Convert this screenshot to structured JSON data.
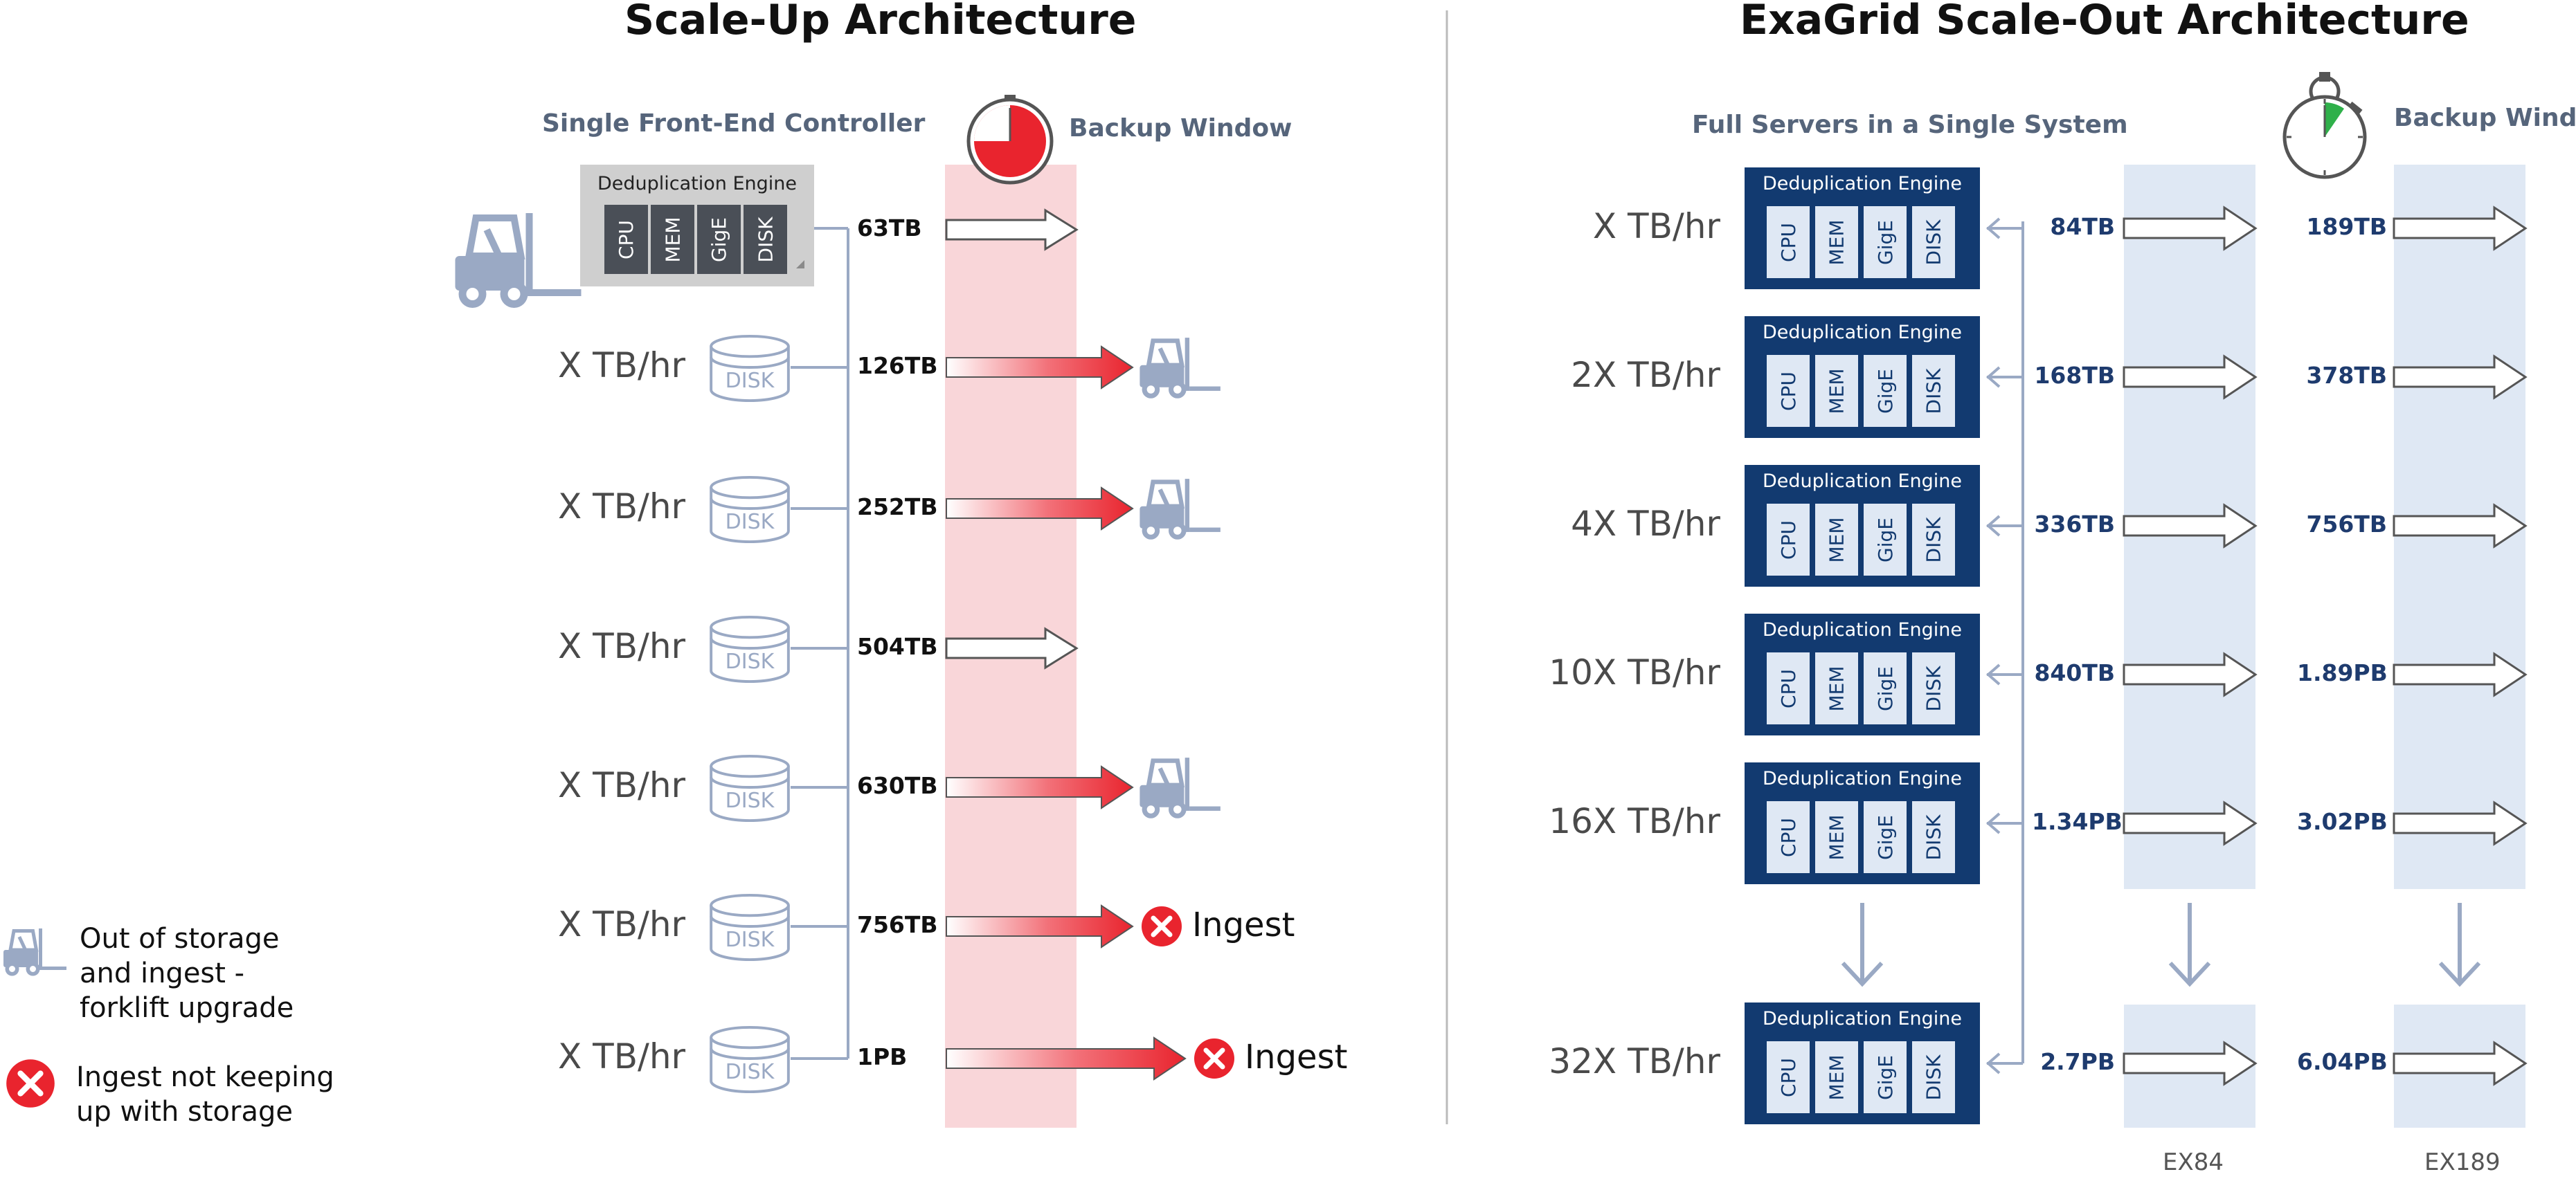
{
  "left": {
    "title": "Scale-Up Architecture",
    "controller_label": "Single Front-End Controller",
    "backup_window_label": "Backup Window",
    "engine_label": "Deduplication Engine",
    "components": [
      "CPU",
      "MEM",
      "GigE",
      "DISK"
    ],
    "disk_label": "DISK",
    "rate_label": "X TB/hr",
    "rows": [
      {
        "capacity": "63TB",
        "status": "ok"
      },
      {
        "capacity": "126TB",
        "status": "forklift"
      },
      {
        "capacity": "252TB",
        "status": "forklift"
      },
      {
        "capacity": "504TB",
        "status": "ok"
      },
      {
        "capacity": "630TB",
        "status": "forklift"
      },
      {
        "capacity": "756TB",
        "status": "ingest"
      },
      {
        "capacity": "1PB",
        "status": "ingest"
      }
    ],
    "ingest_label": "Ingest"
  },
  "legend": {
    "forklift_lines": [
      "Out of storage",
      "and ingest -",
      "forklift upgrade"
    ],
    "ingest_lines": [
      "Ingest not keeping",
      "up with storage"
    ]
  },
  "right": {
    "title": "ExaGrid Scale-Out Architecture",
    "servers_label": "Full Servers in a Single System",
    "backup_window_label": "Backup Window",
    "engine_label": "Deduplication Engine",
    "components": [
      "CPU",
      "MEM",
      "GigE",
      "DISK"
    ],
    "rows": [
      {
        "rate": "X TB/hr",
        "ex84": "84TB",
        "ex189": "189TB"
      },
      {
        "rate": "2X TB/hr",
        "ex84": "168TB",
        "ex189": "378TB"
      },
      {
        "rate": "4X TB/hr",
        "ex84": "336TB",
        "ex189": "756TB"
      },
      {
        "rate": "10X TB/hr",
        "ex84": "840TB",
        "ex189": "1.89PB"
      },
      {
        "rate": "16X TB/hr",
        "ex84": "1.34PB",
        "ex189": "3.02PB"
      },
      {
        "rate": "32X TB/hr",
        "ex84": "2.7PB",
        "ex189": "6.04PB"
      }
    ],
    "models": [
      "EX84",
      "EX189"
    ]
  },
  "colors": {
    "navy": "#123a70",
    "light_blue": "#dfe8f4",
    "window_red": "#f9d6d9",
    "arrow_red": "#e9242e",
    "icon_gray": "#9aa9c4"
  }
}
